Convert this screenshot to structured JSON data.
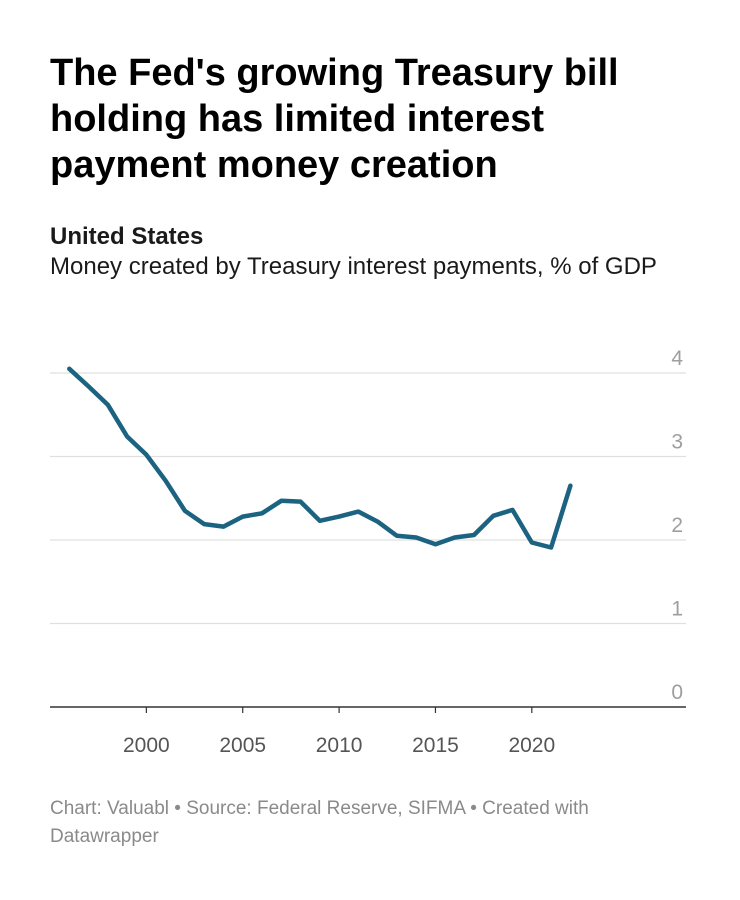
{
  "header": {
    "title": "The Fed's growing Treasury bill holding has limited interest payment money creation",
    "place": "United States",
    "description": "Money created by Treasury interest payments, % of GDP"
  },
  "footer": {
    "text": "Chart: Valuabl • Source: Federal Reserve, SIFMA • Created with Datawrapper"
  },
  "colors": {
    "line": "#1b6380",
    "grid": "#e0e0e0",
    "axis": "#333333"
  },
  "chart_data": {
    "type": "line",
    "title": "The Fed's growing Treasury bill holding has limited interest payment money creation",
    "subtitle": "Money created by Treasury interest payments, % of GDP",
    "xlabel": "",
    "ylabel": "",
    "xlim": [
      1995,
      2028
    ],
    "ylim": [
      0,
      4
    ],
    "y_ticks": [
      0,
      1,
      2,
      3,
      4
    ],
    "x_ticks": [
      2000,
      2005,
      2010,
      2015,
      2020
    ],
    "grid": true,
    "y_axis_side": "right",
    "series": [
      {
        "x": [
          1996,
          1997,
          1998,
          1999,
          2000,
          2001,
          2002,
          2003,
          2004,
          2005,
          2006,
          2007,
          2008,
          2009,
          2010,
          2011,
          2012,
          2013,
          2014,
          2015,
          2016,
          2017,
          2018,
          2019,
          2020,
          2021,
          2022
        ],
        "values": [
          4.05,
          3.84,
          3.62,
          3.24,
          3.02,
          2.71,
          2.35,
          2.19,
          2.16,
          2.28,
          2.32,
          2.47,
          2.46,
          2.23,
          2.28,
          2.34,
          2.22,
          2.05,
          2.03,
          1.95,
          2.03,
          2.06,
          2.29,
          2.36,
          1.97,
          1.91,
          2.65
        ]
      }
    ]
  }
}
